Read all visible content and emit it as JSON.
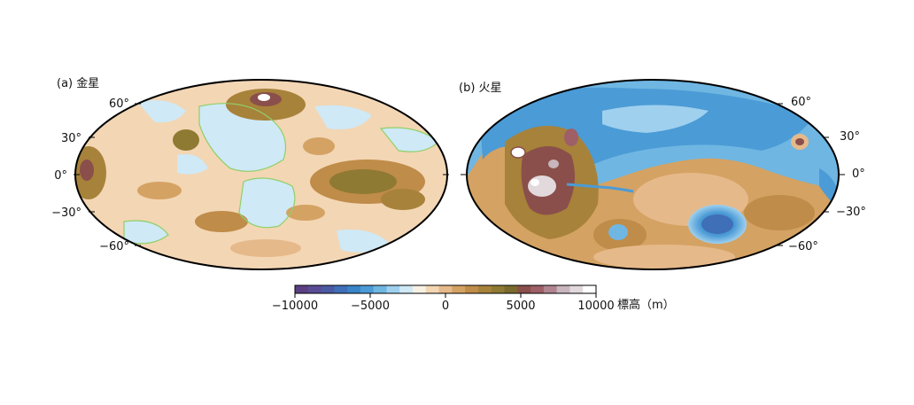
{
  "maps": [
    {
      "id": "venus",
      "title": "(a) 金星",
      "lat_labels_left": [
        "60°",
        "30°",
        "0°",
        "−30°",
        "−60°"
      ],
      "lat_labels_right": []
    },
    {
      "id": "mars",
      "title": "(b) 火星",
      "lat_labels_left": [],
      "lat_labels_right": [
        "60°",
        "30°",
        "0°",
        "−30°",
        "−60°"
      ]
    }
  ],
  "colorbar": {
    "tick_labels": [
      "−10000",
      "−5000",
      "0",
      "5000",
      "10000"
    ],
    "unit_label": "標高（m）",
    "colors": [
      "#5b3f82",
      "#5a4c94",
      "#4b5aa2",
      "#3f6fb7",
      "#3a84c8",
      "#4b9bd6",
      "#6fb6e2",
      "#9fd0ee",
      "#cfe9f6",
      "#f7f1e3",
      "#f3d6b4",
      "#e6b98a",
      "#d4a263",
      "#bf8c49",
      "#a7823a",
      "#8f7a33",
      "#7b6a2e",
      "#8a4f4b",
      "#9e5f66",
      "#b08590",
      "#c8b5bd",
      "#e2d9dd",
      "#ffffff"
    ]
  }
}
